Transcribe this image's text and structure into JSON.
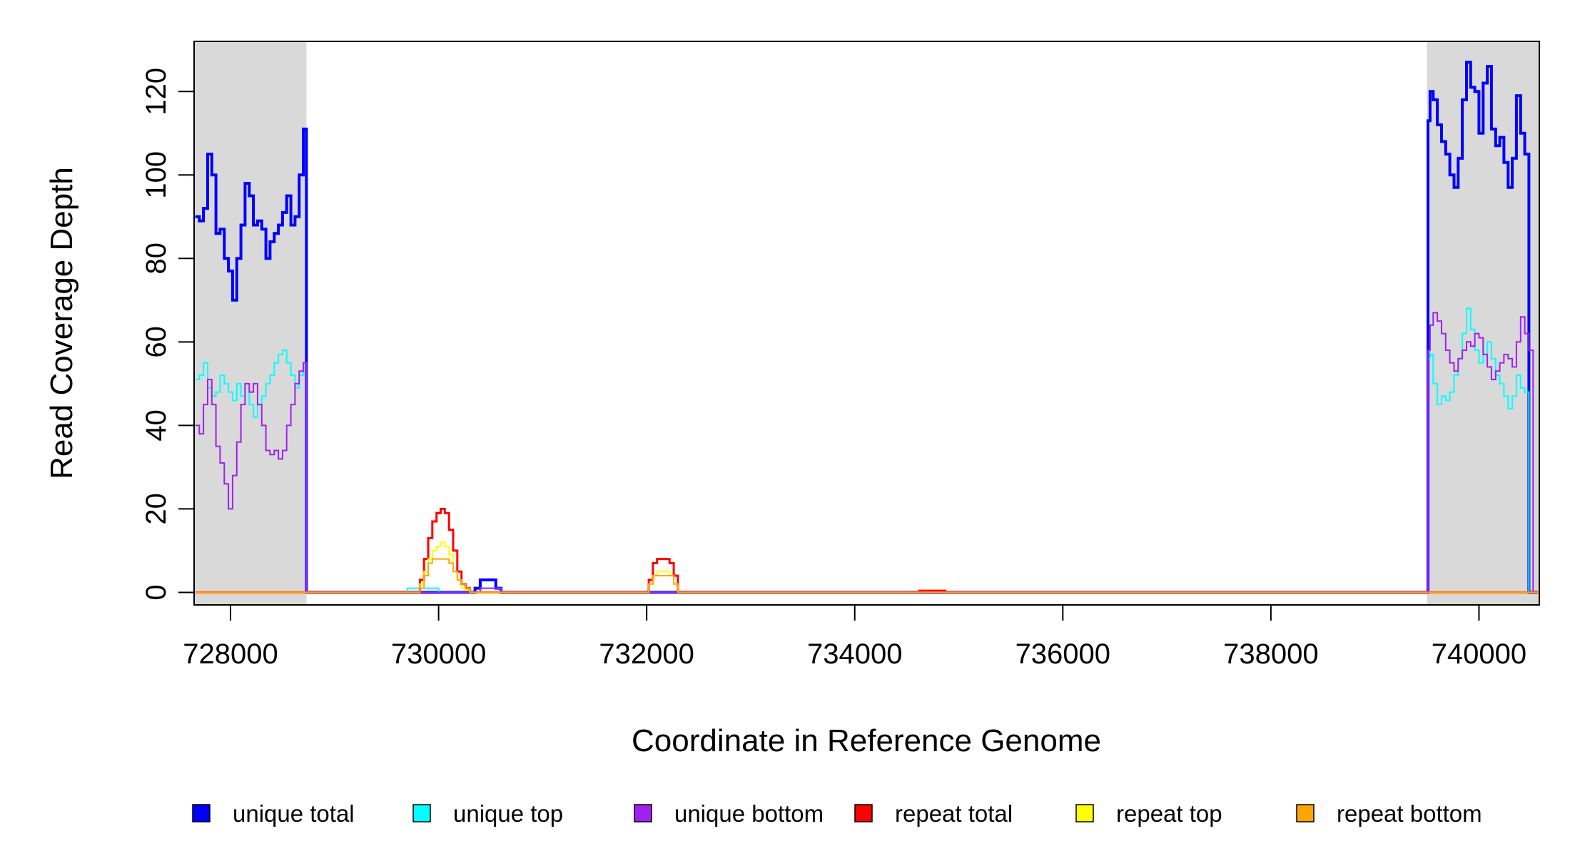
{
  "chart_data": {
    "type": "line",
    "title": "",
    "xlabel": "Coordinate in Reference Genome",
    "ylabel": "Read Coverage Depth",
    "xlim": [
      727650,
      740580
    ],
    "ylim": [
      -3,
      132
    ],
    "xticks": [
      728000,
      730000,
      732000,
      734000,
      736000,
      738000,
      740000
    ],
    "xtick_labels": [
      "728000",
      "730000",
      "732000",
      "734000",
      "736000",
      "738000",
      "740000"
    ],
    "yticks": [
      0,
      20,
      40,
      60,
      80,
      100,
      120
    ],
    "ytick_labels": [
      "0",
      "20",
      "40",
      "60",
      "80",
      "100",
      "120"
    ],
    "grid": false,
    "legend_position": "bottom",
    "shaded_regions": [
      {
        "x": [
          727650,
          728730
        ],
        "color": "#d9d9d9"
      },
      {
        "x": [
          739500,
          740580
        ],
        "color": "#d9d9d9"
      }
    ],
    "series": [
      {
        "name": "unique total",
        "color": "#0000ff",
        "width": 4,
        "x": [
          727660,
          727700,
          727740,
          727780,
          727820,
          727860,
          727900,
          727940,
          727980,
          728020,
          728060,
          728100,
          728140,
          728180,
          728220,
          728260,
          728300,
          728340,
          728380,
          728420,
          728460,
          728500,
          728540,
          728580,
          728620,
          728660,
          728700,
          728730,
          728760,
          729000,
          729500,
          729700,
          729800,
          729900,
          730000,
          730100,
          730200,
          730300,
          730350,
          730400,
          730450,
          730500,
          730550,
          730600,
          731000,
          731500,
          732000,
          732500,
          733000,
          734000,
          735000,
          736000,
          737000,
          738000,
          739000,
          739480,
          739510,
          739530,
          739560,
          739600,
          739640,
          739680,
          739720,
          739760,
          739800,
          739840,
          739880,
          739920,
          739960,
          740000,
          740040,
          740080,
          740120,
          740160,
          740200,
          740240,
          740280,
          740320,
          740360,
          740400,
          740440,
          740480,
          740520,
          740560
        ],
        "y": [
          90,
          89,
          92,
          105,
          100,
          86,
          87,
          80,
          77,
          70,
          80,
          88,
          98,
          95,
          88,
          89,
          87,
          80,
          84,
          86,
          88,
          91,
          95,
          88,
          90,
          100,
          111,
          0,
          0,
          0,
          0,
          0,
          0,
          0,
          0,
          0,
          0,
          0,
          1,
          3,
          3,
          3,
          1,
          0,
          0,
          0,
          0,
          0,
          0,
          0,
          0,
          0,
          0,
          0,
          0,
          0,
          113,
          120,
          118,
          112,
          108,
          105,
          100,
          97,
          104,
          118,
          127,
          121,
          120,
          110,
          122,
          126,
          111,
          107,
          109,
          103,
          97,
          104,
          119,
          110,
          105,
          0,
          0,
          0
        ]
      },
      {
        "name": "unique top",
        "color": "#00ffff",
        "width": 2,
        "x": [
          727660,
          727700,
          727740,
          727780,
          727820,
          727860,
          727900,
          727940,
          727980,
          728020,
          728060,
          728100,
          728140,
          728180,
          728220,
          728260,
          728300,
          728340,
          728380,
          728420,
          728460,
          728500,
          728540,
          728580,
          728620,
          728660,
          728700,
          728730,
          728760,
          729000,
          729600,
          729700,
          729800,
          730000,
          730200,
          730300,
          730400,
          730500,
          730550,
          730600,
          731000,
          732000,
          733000,
          734000,
          735000,
          736000,
          737000,
          738000,
          739000,
          739480,
          739510,
          739530,
          739560,
          739600,
          739640,
          739680,
          739720,
          739760,
          739800,
          739840,
          739880,
          739920,
          739960,
          740000,
          740040,
          740080,
          740120,
          740160,
          740200,
          740240,
          740280,
          740320,
          740360,
          740400,
          740440,
          740480,
          740520,
          740560
        ],
        "y": [
          51,
          52,
          55,
          49,
          47,
          48,
          52,
          50,
          48,
          46,
          50,
          47,
          50,
          45,
          42,
          45,
          47,
          50,
          52,
          55,
          57,
          58,
          55,
          52,
          49,
          52,
          55,
          0,
          0,
          0,
          0,
          1,
          1,
          0,
          0,
          0,
          1,
          1,
          1,
          0,
          0,
          0,
          0,
          0,
          0,
          0,
          0,
          0,
          0,
          0,
          56,
          57,
          50,
          45,
          47,
          46,
          48,
          52,
          56,
          62,
          68,
          63,
          58,
          55,
          57,
          60,
          56,
          52,
          50,
          47,
          44,
          47,
          52,
          49,
          48,
          0,
          0,
          0
        ]
      },
      {
        "name": "unique bottom",
        "color": "#a020f0",
        "width": 2,
        "x": [
          727660,
          727700,
          727740,
          727780,
          727820,
          727860,
          727900,
          727940,
          727980,
          728020,
          728060,
          728100,
          728140,
          728180,
          728220,
          728260,
          728300,
          728340,
          728380,
          728420,
          728460,
          728500,
          728540,
          728580,
          728620,
          728660,
          728700,
          728730,
          728760,
          729000,
          730000,
          730300,
          730400,
          730500,
          730600,
          731000,
          732000,
          733000,
          734000,
          735000,
          736000,
          737000,
          738000,
          739000,
          739480,
          739510,
          739530,
          739560,
          739600,
          739640,
          739680,
          739720,
          739760,
          739800,
          739840,
          739880,
          739920,
          739960,
          740000,
          740040,
          740080,
          740120,
          740160,
          740200,
          740240,
          740280,
          740320,
          740360,
          740400,
          740440,
          740480,
          740520,
          740560
        ],
        "y": [
          40,
          38,
          45,
          51,
          45,
          35,
          31,
          26,
          20,
          28,
          36,
          45,
          50,
          48,
          50,
          45,
          40,
          34,
          33,
          34,
          32,
          34,
          40,
          45,
          50,
          53,
          55,
          0,
          0,
          0,
          0,
          0,
          1,
          1,
          0,
          0,
          0,
          0,
          0,
          0,
          0,
          0,
          0,
          0,
          0,
          58,
          64,
          67,
          65,
          62,
          58,
          55,
          53,
          56,
          58,
          60,
          59,
          62,
          61,
          57,
          54,
          51,
          53,
          55,
          57,
          56,
          54,
          60,
          66,
          62,
          58,
          0,
          0
        ]
      },
      {
        "name": "repeat total",
        "color": "#ff0000",
        "width": 3,
        "x": [
          727660,
          728000,
          729000,
          729780,
          729820,
          729860,
          729900,
          729940,
          729980,
          730020,
          730060,
          730100,
          730140,
          730180,
          730220,
          730260,
          730300,
          730340,
          731000,
          731980,
          732020,
          732060,
          732100,
          732140,
          732180,
          732220,
          732260,
          732300,
          733000,
          734000,
          734600,
          734620,
          734850,
          734870,
          735500,
          736000,
          737000,
          738000,
          739000,
          740000,
          740580
        ],
        "y": [
          0,
          0,
          0,
          0,
          3,
          8,
          13,
          17,
          19,
          20,
          19,
          15,
          10,
          5,
          2,
          1,
          0,
          0,
          0,
          0,
          3,
          7,
          8,
          8,
          8,
          7,
          4,
          0,
          0,
          0,
          0,
          0.4,
          0.4,
          0,
          0,
          0,
          0,
          0,
          0,
          0,
          0
        ]
      },
      {
        "name": "repeat top",
        "color": "#ffff00",
        "width": 2,
        "x": [
          727660,
          728000,
          729000,
          729780,
          729820,
          729860,
          729900,
          729940,
          729980,
          730020,
          730060,
          730100,
          730140,
          730180,
          730220,
          730260,
          730300,
          730340,
          731000,
          731980,
          732020,
          732060,
          732100,
          732140,
          732180,
          732220,
          732260,
          732300,
          733000,
          734000,
          735000,
          736000,
          737000,
          738000,
          739000,
          740000,
          740580
        ],
        "y": [
          0,
          0,
          0,
          0,
          2,
          5,
          8,
          10,
          11,
          12,
          11,
          9,
          5,
          3,
          1,
          0.5,
          0,
          0,
          0,
          0,
          2,
          4,
          5,
          5,
          5,
          4,
          2,
          0,
          0,
          0,
          0,
          0,
          0,
          0,
          0,
          0,
          0
        ]
      },
      {
        "name": "repeat bottom",
        "color": "#ffa500",
        "width": 2,
        "x": [
          727660,
          728000,
          729000,
          729780,
          729820,
          729860,
          729900,
          729940,
          729980,
          730020,
          730060,
          730100,
          730140,
          730180,
          730220,
          730260,
          730300,
          730340,
          731000,
          731980,
          732020,
          732060,
          732100,
          732140,
          732180,
          732220,
          732260,
          732300,
          733000,
          734000,
          735000,
          736000,
          737000,
          738000,
          739000,
          740000,
          740580
        ],
        "y": [
          0,
          0,
          0,
          0,
          1,
          4,
          7,
          8,
          8,
          8,
          8,
          7,
          5,
          3,
          2,
          1,
          0,
          0,
          0,
          0,
          2,
          4,
          4,
          4,
          4,
          4,
          2,
          0,
          0,
          0,
          0,
          0,
          0,
          0,
          0,
          0,
          0
        ]
      }
    ]
  }
}
